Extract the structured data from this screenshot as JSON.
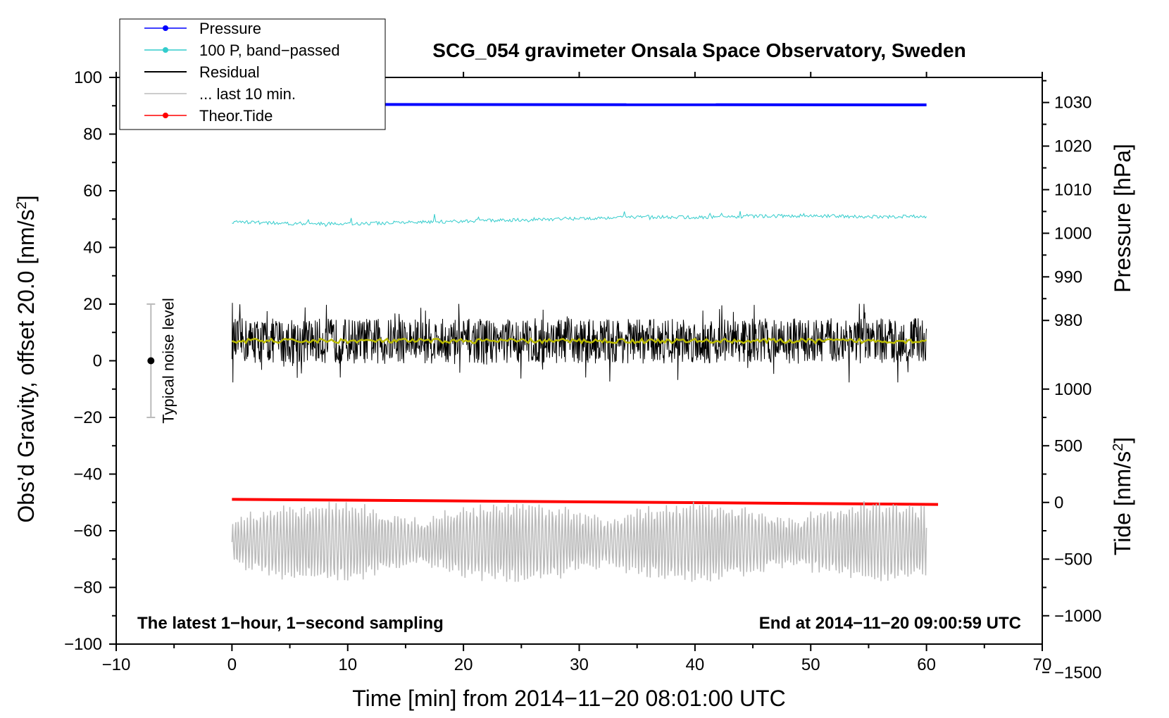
{
  "chart_data": {
    "type": "line",
    "title": "SCG_054 gravimeter Onsala Space Observatory, Sweden",
    "xlabel": "Time [min] from 2014−11−20 08:01:00 UTC",
    "ylabel": "Obs’d Gravity, offset 20.0 [nm/s",
    "ylabel_sup": "2",
    "ylabel_end": "]",
    "xlim": [
      -10,
      70
    ],
    "ylim": [
      -100,
      100
    ],
    "xticks": [
      -10,
      0,
      10,
      20,
      30,
      40,
      50,
      60,
      70
    ],
    "xtick_labels": [
      "−10",
      "0",
      "10",
      "20",
      "30",
      "40",
      "50",
      "60",
      "70"
    ],
    "yticks": [
      -100,
      -80,
      -60,
      -40,
      -20,
      0,
      20,
      40,
      60,
      80,
      100
    ],
    "ytick_labels": [
      "−100",
      "−80",
      "−60",
      "−40",
      "−20",
      "0",
      "20",
      "40",
      "60",
      "80",
      "100"
    ],
    "right_pressure_axis": {
      "label": "Pressure [hPa]",
      "ticks": [
        980,
        990,
        1000,
        1010,
        1020,
        1030
      ],
      "tick_labels": [
        "980",
        "990",
        "1000",
        "1010",
        "1020",
        "1030"
      ],
      "hpa_per_gravity_unit": 0.65,
      "ref_hpa": 1000,
      "ref_gravity": 45
    },
    "right_tide_axis": {
      "label": "Tide [nm/s",
      "label_sup": "2",
      "label_end": "]",
      "ticks": [
        -1500,
        -1000,
        -500,
        0,
        500,
        1000
      ],
      "tick_labels": [
        "−1500",
        "−1000",
        "−500",
        "0",
        "500",
        "1000"
      ],
      "tide_per_gravity_unit": 25,
      "ref_tide": 0,
      "ref_gravity": -50
    },
    "noise_bar": {
      "label": "Typical noise level",
      "x": -7,
      "center": 0,
      "low": -20,
      "high": 20
    },
    "legend": [
      {
        "label": "Pressure",
        "color": "#0000ff",
        "marker": true
      },
      {
        "label": "100 P, band−passed",
        "color": "#33cccc",
        "marker": true
      },
      {
        "label": "Residual",
        "color": "#000000",
        "marker": false
      },
      {
        "label": "... last 10 min.",
        "color": "#bbbbbb",
        "marker": false
      },
      {
        "label": "Theor.Tide",
        "color": "#ff0000",
        "marker": true
      }
    ],
    "annotation_left": "The latest 1−hour, 1−second sampling",
    "annotation_right": "End at 2014−11−20 09:00:59 UTC",
    "series": [
      {
        "name": "Pressure",
        "color": "#0000ff",
        "x": [
          0,
          60
        ],
        "y": [
          90.5,
          90.3
        ]
      },
      {
        "name": "100 P, band−passed",
        "color": "#33cccc",
        "x": [
          0,
          5,
          10,
          15,
          20,
          25,
          30,
          35,
          40,
          45,
          50,
          55,
          60
        ],
        "y": [
          49,
          48.5,
          48.3,
          48.8,
          49.2,
          49.8,
          50.2,
          50.8,
          50.6,
          51,
          51.2,
          50.8,
          51
        ]
      },
      {
        "name": "Residual",
        "color": "#000000",
        "x_range": [
          0,
          60
        ],
        "center": 7,
        "min": -10,
        "max": 24
      },
      {
        "name": "Residual smoothed",
        "color": "#bbbb00",
        "x_range": [
          0,
          60
        ],
        "center": 7
      },
      {
        "name": "... last 10 min.",
        "color": "#bbbbbb",
        "x_range": [
          0,
          60
        ],
        "center": -64,
        "min": -78,
        "max": -44
      },
      {
        "name": "Theor.Tide",
        "color": "#ff0000",
        "x": [
          0,
          61
        ],
        "y": [
          -48.9,
          -50.7
        ]
      }
    ]
  }
}
